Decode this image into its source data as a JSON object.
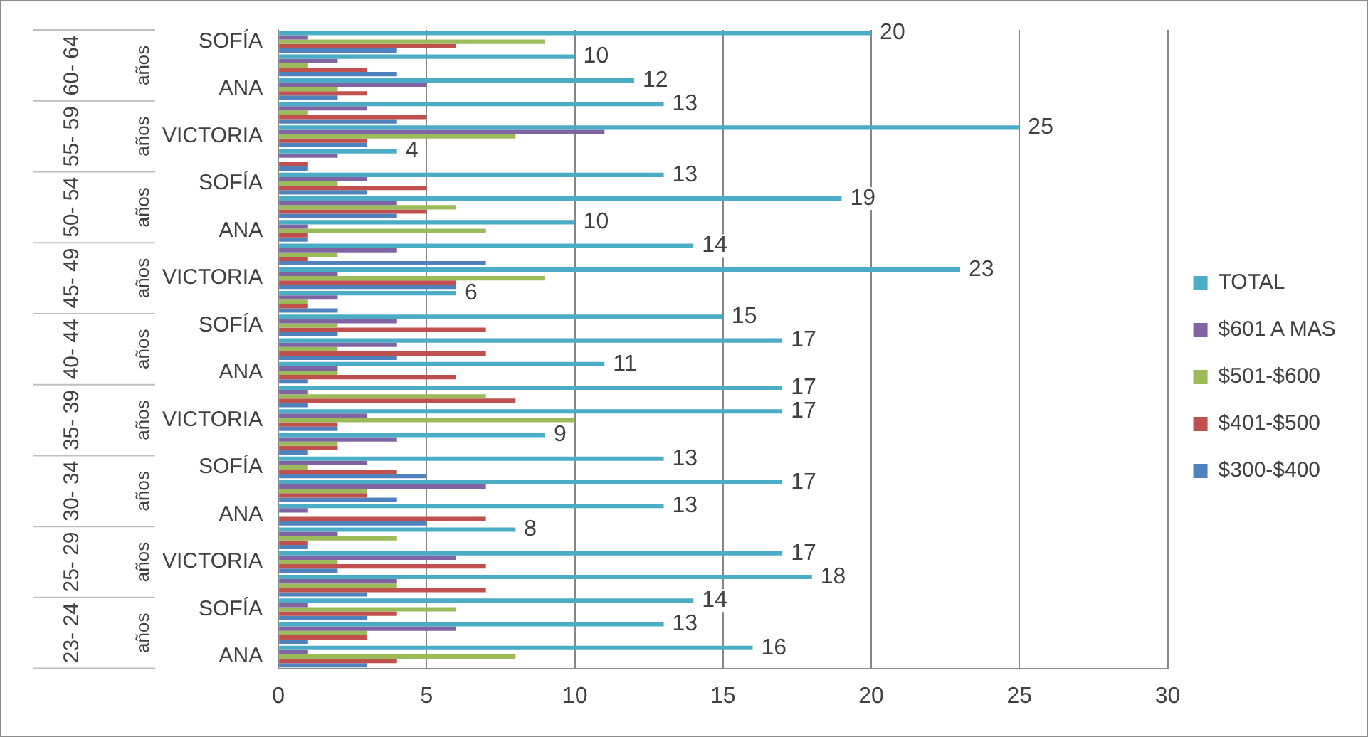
{
  "chart_data": {
    "type": "bar",
    "orientation": "horizontal",
    "categories": [
      "SOFÍA",
      null,
      "ANA",
      null,
      "VICTORIA",
      null,
      "SOFÍA",
      null,
      "ANA",
      null,
      "VICTORIA",
      null,
      "SOFÍA",
      null,
      "ANA",
      null,
      "VICTORIA",
      null,
      "SOFÍA",
      null,
      "ANA",
      null,
      "VICTORIA",
      null,
      "SOFÍA",
      null,
      "ANA"
    ],
    "series": [
      {
        "name": "TOTAL",
        "color": "#4bacc6",
        "values": [
          20,
          10,
          12,
          13,
          25,
          4,
          13,
          19,
          10,
          14,
          23,
          6,
          15,
          17,
          11,
          17,
          17,
          9,
          13,
          17,
          13,
          8,
          17,
          18,
          14,
          13,
          16
        ],
        "value_labels": [
          "20",
          "10",
          "12",
          "13",
          "25",
          "4",
          "13",
          "19",
          "10",
          "14",
          "23",
          "6",
          "15",
          "17",
          "11",
          "17",
          "17",
          "9",
          "13",
          "17",
          "13",
          "8",
          "17",
          "18",
          "14",
          "13",
          "16"
        ]
      },
      {
        "name": "$601 A MAS",
        "color": "#8064a2",
        "values": [
          1,
          2,
          5,
          3,
          11,
          2,
          3,
          4,
          1,
          4,
          2,
          2,
          4,
          4,
          2,
          1,
          3,
          4,
          3,
          7,
          1,
          2,
          6,
          4,
          1,
          6,
          1
        ]
      },
      {
        "name": "$501-$600",
        "color": "#9bbb59",
        "values": [
          9,
          1,
          2,
          1,
          8,
          0,
          2,
          6,
          7,
          2,
          9,
          1,
          2,
          2,
          2,
          7,
          10,
          2,
          1,
          3,
          0,
          4,
          2,
          4,
          6,
          3,
          8
        ]
      },
      {
        "name": "$401-$500",
        "color": "#c0504d",
        "values": [
          6,
          3,
          3,
          5,
          3,
          1,
          5,
          5,
          1,
          1,
          6,
          1,
          7,
          7,
          6,
          8,
          2,
          2,
          4,
          3,
          7,
          1,
          7,
          7,
          4,
          3,
          4
        ]
      },
      {
        "name": "$300-$400",
        "color": "#4f81bd",
        "values": [
          4,
          4,
          2,
          4,
          3,
          1,
          3,
          4,
          1,
          7,
          6,
          2,
          2,
          4,
          1,
          1,
          2,
          1,
          5,
          4,
          5,
          1,
          2,
          3,
          3,
          1,
          3
        ]
      }
    ],
    "annotations": [
      "60- 64 años",
      "55- 59 años",
      "50- 54 años",
      "45- 49 años",
      "40- 44 años",
      "35- 39 años",
      "30- 34 años",
      "25- 29 años",
      "23- 24 años"
    ],
    "xlim": [
      0,
      30
    ],
    "xticks": [
      0,
      5,
      10,
      15,
      20,
      25,
      30
    ],
    "grid": "x",
    "legend": "right"
  }
}
